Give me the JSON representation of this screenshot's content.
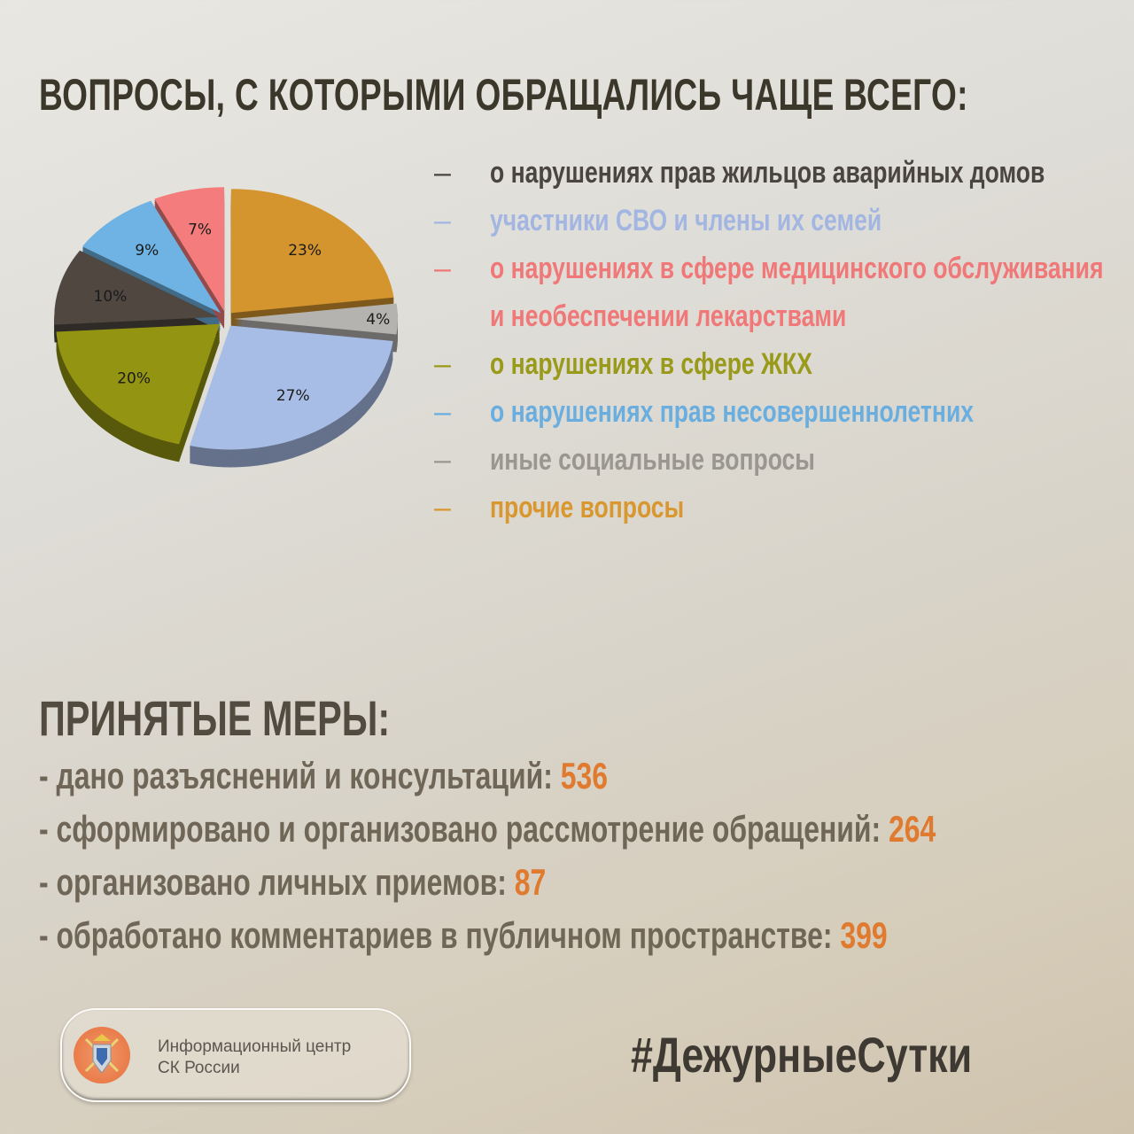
{
  "title": "ВОПРОСЫ, С КОТОРЫМИ ОБРАЩАЛИСЬ ЧАЩЕ ВСЕГО:",
  "chart_data": {
    "type": "pie",
    "style": "3d exploded",
    "start": "top, clockwise",
    "slices": [
      {
        "label": "прочие вопросы",
        "value": 23,
        "data_label": "23%",
        "color": "#d4952f"
      },
      {
        "label": "иные социальные вопросы",
        "value": 4,
        "data_label": "4%",
        "color": "#b5b3b0"
      },
      {
        "label": "участники СВО и члены их семей",
        "value": 27,
        "data_label": "27%",
        "color": "#a8bde6"
      },
      {
        "label": "о нарушениях в сфере ЖКХ",
        "value": 20,
        "data_label": "20%",
        "color": "#939412"
      },
      {
        "label": "о нарушениях прав жильцов аварийных домов",
        "value": 10,
        "data_label": "10%",
        "color": "#4f4740"
      },
      {
        "label": "о нарушениях прав несовершеннолетних",
        "value": 9,
        "data_label": "9%",
        "color": "#6eb3e3"
      },
      {
        "label": "о нарушениях в сфере медицинского обслуживания и необеспечении лекарствами",
        "value": 7,
        "data_label": "7%",
        "color": "#f47c7c"
      }
    ]
  },
  "legend": [
    {
      "dash": "–",
      "text": "о нарушениях прав жильцов аварийных домов",
      "color": "#4a4540"
    },
    {
      "dash": "–",
      "text": "участники СВО и члены их семей",
      "color": "#a3b6e2"
    },
    {
      "dash": "–",
      "text": "о нарушениях в сфере медицинского обслуживания и необеспечении лекарствами",
      "color": "#f07878"
    },
    {
      "dash": "–",
      "text": "о нарушениях в сфере ЖКХ",
      "color": "#9a9a1a"
    },
    {
      "dash": "–",
      "text": "о нарушениях прав несовершеннолетних",
      "color": "#6aaee0"
    },
    {
      "dash": "–",
      "text": "иные социальные вопросы",
      "color": "#9a9690"
    },
    {
      "dash": "–",
      "text": "прочие вопросы",
      "color": "#d9972f"
    }
  ],
  "measures": {
    "title": "ПРИНЯТЫЕ МЕРЫ:",
    "items": [
      {
        "label": "- дано разъяснений и консультаций: ",
        "value": "536"
      },
      {
        "label": "- сформировано и организовано рассмотрение обращений: ",
        "value": "264"
      },
      {
        "label": "- организовано личных приемов: ",
        "value": "87"
      },
      {
        "label": "- обработано комментариев в публичном пространстве: ",
        "value": "399"
      }
    ]
  },
  "footer": {
    "logo_line1": "Информационный центр",
    "logo_line2": "СК России",
    "hashtag": "#ДежурныеСутки"
  }
}
